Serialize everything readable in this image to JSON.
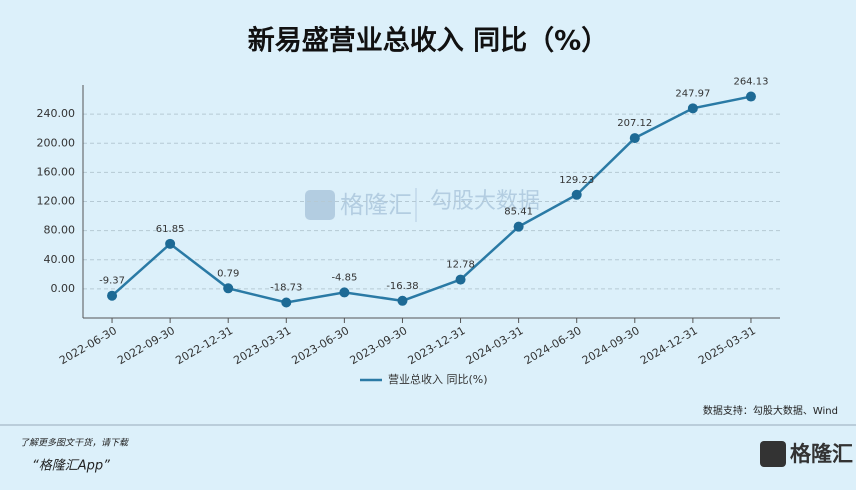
{
  "chart_data": {
    "type": "line",
    "title": "新易盛营业总收入 同比（%）",
    "categories": [
      "2022-06-30",
      "2022-09-30",
      "2022-12-31",
      "2023-03-31",
      "2023-06-30",
      "2023-09-30",
      "2023-12-31",
      "2024-03-31",
      "2024-06-30",
      "2024-09-30",
      "2024-12-31",
      "2025-03-31"
    ],
    "series": [
      {
        "name": "营业总收入 同比(%)",
        "color": "#2a7aa5",
        "values": [
          -9.37,
          61.85,
          0.79,
          -18.73,
          -4.85,
          -16.38,
          12.78,
          85.41,
          129.23,
          207.12,
          247.97,
          264.13
        ]
      }
    ],
    "ylim": [
      -40,
      280
    ],
    "yticks": [
      {
        "value": 0,
        "label": "0.00"
      },
      {
        "value": 40,
        "label": "40.00"
      },
      {
        "value": 80,
        "label": "80.00"
      },
      {
        "value": 120,
        "label": "120.00"
      },
      {
        "value": 160,
        "label": "160.00"
      },
      {
        "value": 200,
        "label": "200.00"
      },
      {
        "value": 240,
        "label": "240.00"
      }
    ],
    "grid": true,
    "legend": "bottom"
  },
  "page": {
    "source": "数据支持：勾股大数据、Wind",
    "footer_note": "了解更多图文干货，请下载",
    "footer_app": "“格隆汇App”",
    "watermark_brand": "格隆汇",
    "watermark_data": "勾股大数据",
    "logo": "格隆汇"
  }
}
